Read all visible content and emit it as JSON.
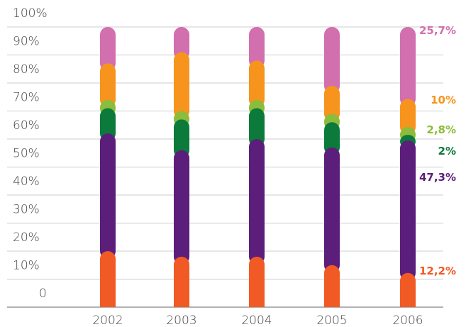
{
  "chart_data": {
    "type": "stacked_bar",
    "categories": [
      "2002",
      "2003",
      "2004",
      "2005",
      "2006"
    ],
    "series": [
      {
        "color": "#f15a24",
        "values": [
          20,
          18,
          18,
          15,
          12.2
        ],
        "value_labels": [
          null,
          null,
          null,
          null,
          "12,2%"
        ]
      },
      {
        "color": "#5c1e7b",
        "values": [
          42,
          38,
          42,
          42,
          47.3
        ],
        "value_labels": [
          null,
          null,
          null,
          null,
          "47,3%"
        ]
      },
      {
        "color": "#0b7a3b",
        "values": [
          9,
          11,
          11,
          9,
          2
        ],
        "value_labels": [
          null,
          null,
          null,
          null,
          "2%"
        ]
      },
      {
        "color": "#8cbc3c",
        "values": [
          3,
          3,
          3,
          3,
          2.8
        ],
        "value_labels": [
          null,
          null,
          null,
          null,
          "2,8%"
        ]
      },
      {
        "color": "#f7941d",
        "values": [
          13,
          21,
          14,
          10,
          10
        ],
        "value_labels": [
          null,
          null,
          null,
          null,
          "10%"
        ]
      },
      {
        "color": "#d26fae",
        "values": [
          13,
          9,
          12,
          21,
          25.7
        ],
        "value_labels": [
          null,
          null,
          null,
          null,
          "25,7%"
        ]
      }
    ],
    "ylim": [
      0,
      100
    ],
    "yticks": [
      0,
      {
        "value": 10,
        "label": "10%"
      },
      {
        "value": 20,
        "label": "20%"
      },
      {
        "value": 30,
        "label": "30%"
      },
      {
        "value": 40,
        "label": "40%"
      },
      {
        "value": 50,
        "label": "50%"
      },
      {
        "value": 60,
        "label": "60%"
      },
      {
        "value": 70,
        "label": "70%"
      },
      {
        "value": 80,
        "label": "80%"
      },
      {
        "value": 90,
        "label": "90%"
      },
      {
        "value": 100,
        "label": "100%"
      }
    ],
    "grid": true
  }
}
